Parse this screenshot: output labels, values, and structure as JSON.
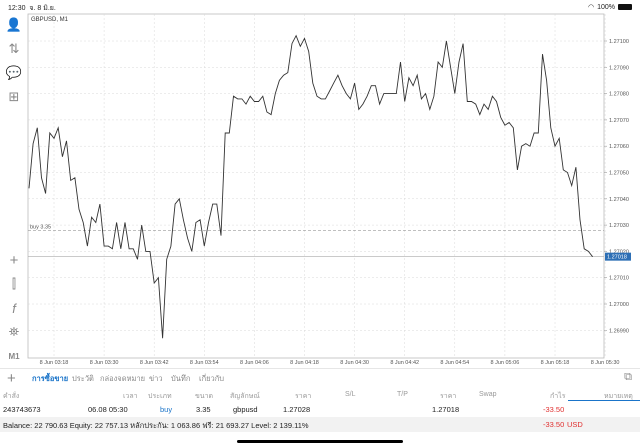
{
  "status_bar": {
    "time": "12:30",
    "date": "จ. 8 มิ.ย.",
    "battery": "100%"
  },
  "chart_title": "GBPUSD, M1",
  "sidebar": {
    "items": [
      "account-icon",
      "trade-icon",
      "chat-icon",
      "new-order-icon",
      "crosshair-icon",
      "candles-icon",
      "indicators-icon",
      "objects-icon",
      "M1"
    ]
  },
  "chart_data": {
    "type": "line",
    "symbol": "GBPUSD",
    "timeframe": "M1",
    "x": [
      "03:12",
      "03:13",
      "03:14",
      "03:15",
      "03:16",
      "03:17",
      "03:18",
      "03:19",
      "03:20",
      "03:21",
      "03:22",
      "03:23",
      "03:24",
      "03:25",
      "03:26",
      "03:27",
      "03:28",
      "03:29",
      "03:30",
      "03:31",
      "03:32",
      "03:33",
      "03:34",
      "03:35",
      "03:36",
      "03:37",
      "03:38",
      "03:39",
      "03:40",
      "03:41",
      "03:42",
      "03:43",
      "03:44",
      "03:45",
      "03:46",
      "03:47",
      "03:48",
      "03:49",
      "03:50",
      "03:51",
      "03:52",
      "03:53",
      "03:54",
      "03:55",
      "03:56",
      "03:57",
      "03:58",
      "03:59",
      "04:00",
      "04:01",
      "04:02",
      "04:03",
      "04:04",
      "04:05",
      "04:06",
      "04:07",
      "04:08",
      "04:09",
      "04:10",
      "04:11",
      "04:12",
      "04:13",
      "04:14",
      "04:15",
      "04:16",
      "04:17",
      "04:18",
      "04:19",
      "04:20",
      "04:21",
      "04:22",
      "04:23",
      "04:24",
      "04:25",
      "04:26",
      "04:27",
      "04:28",
      "04:29",
      "04:30",
      "04:31",
      "04:32",
      "04:33",
      "04:34",
      "04:35",
      "04:36",
      "04:37",
      "04:38",
      "04:39",
      "04:40",
      "04:41",
      "04:42",
      "04:43",
      "04:44",
      "04:45",
      "04:46",
      "04:47",
      "04:48",
      "04:49",
      "04:50",
      "04:51",
      "04:52",
      "04:53",
      "04:54",
      "04:55",
      "04:56",
      "04:57",
      "04:58",
      "04:59",
      "05:00",
      "05:01",
      "05:02",
      "05:03",
      "05:04",
      "05:05",
      "05:06",
      "05:07",
      "05:08",
      "05:09",
      "05:10",
      "05:11",
      "05:12",
      "05:13",
      "05:14",
      "05:15",
      "05:16",
      "05:17",
      "05:18",
      "05:19",
      "05:20",
      "05:21",
      "05:22",
      "05:23",
      "05:24",
      "05:25",
      "05:26",
      "05:27"
    ],
    "y": [
      1.27044,
      1.27061,
      1.27067,
      1.27048,
      1.27042,
      1.27065,
      1.27063,
      1.27067,
      1.27056,
      1.27062,
      1.27047,
      1.27048,
      1.27036,
      1.27031,
      1.27022,
      1.27033,
      1.27031,
      1.27038,
      1.27022,
      1.27022,
      1.27021,
      1.27031,
      1.27021,
      1.27031,
      1.27021,
      1.27021,
      1.27017,
      1.2703,
      1.2702,
      1.2702,
      1.27008,
      1.2701,
      1.26987,
      1.27017,
      1.27022,
      1.27038,
      1.2704,
      1.27032,
      1.27025,
      1.2702,
      1.27031,
      1.27032,
      1.27022,
      1.27031,
      1.27038,
      1.27038,
      1.27026,
      1.27065,
      1.27065,
      1.27079,
      1.27078,
      1.27078,
      1.27076,
      1.27079,
      1.27077,
      1.27077,
      1.27079,
      1.27073,
      1.27072,
      1.2708,
      1.27085,
      1.27087,
      1.27088,
      1.27099,
      1.27102,
      1.27098,
      1.27101,
      1.27096,
      1.27084,
      1.27079,
      1.27078,
      1.27078,
      1.27081,
      1.27084,
      1.27087,
      1.27083,
      1.2708,
      1.27078,
      1.27084,
      1.27074,
      1.27076,
      1.27079,
      1.27083,
      1.27083,
      1.27076,
      1.2708,
      1.2708,
      1.2708,
      1.2708,
      1.27092,
      1.27077,
      1.27086,
      1.27083,
      1.27087,
      1.27078,
      1.2708,
      1.27074,
      1.27079,
      1.27092,
      1.2709,
      1.271,
      1.2709,
      1.2708,
      1.27092,
      1.27099,
      1.27077,
      1.27077,
      1.27076,
      1.27072,
      1.27076,
      1.27074,
      1.27079,
      1.27077,
      1.27071,
      1.27068,
      1.27069,
      1.27067,
      1.27051,
      1.2706,
      1.27061,
      1.2706,
      1.27065,
      1.27065,
      1.27095,
      1.27085,
      1.27067,
      1.2706,
      1.27063,
      1.27051,
      1.2705,
      1.27045,
      1.27052,
      1.27032,
      1.27021,
      1.2702,
      1.27018
    ],
    "x_tick_labels": [
      "8 Jun 03:18",
      "8 Jun 03:30",
      "8 Jun 03:42",
      "8 Jun 03:54",
      "8 Jun 04:06",
      "8 Jun 04:18",
      "8 Jun 04:30",
      "8 Jun 04:42",
      "8 Jun 04:54",
      "8 Jun 05:06",
      "8 Jun 05:18",
      "8 Jun 05:30"
    ],
    "y_tick_labels": [
      "1.27100",
      "1.27090",
      "1.27080",
      "1.27070",
      "1.27060",
      "1.27050",
      "1.27040",
      "1.27030",
      "1.27020",
      "1.27010",
      "1.27000",
      "1.26990"
    ],
    "ylim": [
      1.269865,
      1.271105
    ],
    "grid": true,
    "order_line": {
      "label": "buy 3.35",
      "price": 1.27028
    },
    "current_price": "1.27018",
    "colors": {
      "line": "#333333",
      "grid": "#d8d8d8",
      "price_tag": "#2d6fb5"
    }
  },
  "tabs": [
    "การซื้อขาย",
    "ประวัติ",
    "กล่องจดหมาย",
    "ข่าว",
    "บันทึก",
    "เกี่ยวกับ"
  ],
  "table": {
    "headers": [
      "คำสั่ง",
      "เวลา",
      "ประเภท",
      "ขนาด",
      "สัญลักษณ์",
      "ราคา",
      "S/L",
      "T/P",
      "ราคา",
      "Swap",
      "กำไร",
      "หมายเหตุ"
    ],
    "rows": [
      {
        "order": "243743673",
        "time": "06.08 05:30",
        "type": "buy",
        "volume": "3.35",
        "symbol": "gbpusd",
        "open_price": "1.27028",
        "sl": "",
        "tp": "",
        "price": "1.27018",
        "swap": "",
        "profit": "-33.50",
        "comment": ""
      }
    ]
  },
  "summary": {
    "text": "Balance: 22 790.63 Equity: 22 757.13 หลักประกัน: 1 063.86 ฟรี: 21 693.27 Level: 2 139.11%",
    "profit": "-33.50",
    "currency": "USD"
  }
}
